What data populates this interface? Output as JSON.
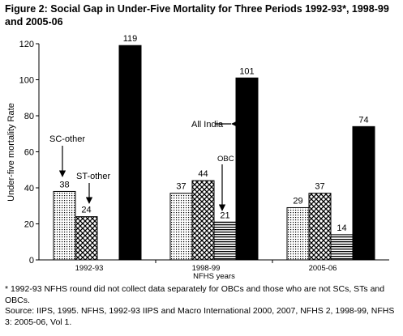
{
  "title": "Figure 2: Social Gap in Under-Five Mortality for Three Periods 1992-93*, 1998-99 and 2005-06",
  "chart_data": {
    "type": "bar",
    "ylabel": "Under-five mortality Rate",
    "xlabel": "NFHS years",
    "ylim": [
      0,
      120
    ],
    "yticks": [
      0,
      20,
      40,
      60,
      80,
      100,
      120
    ],
    "grid": false,
    "categories": [
      "1992-93",
      "1998-99",
      "2005-06"
    ],
    "series": [
      {
        "name": "SC-other",
        "values": [
          38,
          37,
          29
        ],
        "pattern": "dots"
      },
      {
        "name": "ST-other",
        "values": [
          24,
          44,
          37
        ],
        "pattern": "crosshatch"
      },
      {
        "name": "OBC Other",
        "values": [
          null,
          21,
          14
        ],
        "pattern": "hlines"
      },
      {
        "name": "All India",
        "values": [
          119,
          101,
          74
        ],
        "pattern": "solid"
      }
    ],
    "annotations": [
      "SC-other",
      "ST-other",
      "OBC Other",
      "All India"
    ]
  },
  "footnotes": [
    "* 1992-93 NFHS round did not collect data separately for OBCs and those who are not SCs, STs and OBCs.",
    "Source: IIPS, 1995. NFHS, 1992-93 IIPS and Macro International 2000, 2007, NFHS 2, 1998-99, NFHS 3: 2005-06, Vol 1."
  ]
}
